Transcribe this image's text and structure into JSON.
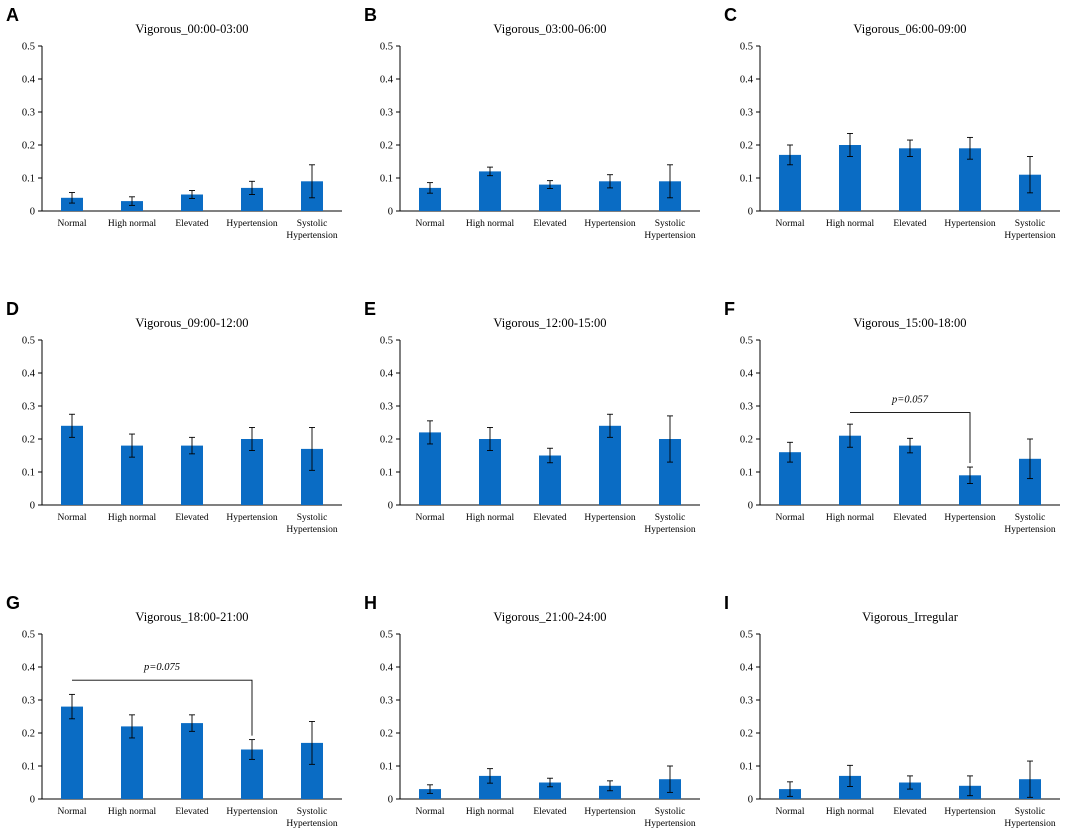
{
  "chart_data": [
    {
      "panel": "A",
      "type": "bar",
      "title": "Vigorous_00:00-03:00",
      "categories": [
        "Normal",
        "High normal",
        "Elevated",
        "Hypertension",
        "Systolic Hypertension"
      ],
      "values": [
        0.04,
        0.03,
        0.05,
        0.07,
        0.09
      ],
      "errors": [
        0.016,
        0.013,
        0.012,
        0.02,
        0.05
      ],
      "ylim": [
        0,
        0.5
      ],
      "yticks": [
        "0",
        "0.1",
        "0.2",
        "0.3",
        "0.4",
        "0.5"
      ],
      "xlabel": "",
      "ylabel": ""
    },
    {
      "panel": "B",
      "type": "bar",
      "title": "Vigorous_03:00-06:00",
      "categories": [
        "Normal",
        "High normal",
        "Elevated",
        "Hypertension",
        "Systolic Hypertension"
      ],
      "values": [
        0.07,
        0.12,
        0.08,
        0.09,
        0.09
      ],
      "errors": [
        0.016,
        0.013,
        0.012,
        0.02,
        0.05
      ],
      "ylim": [
        0,
        0.5
      ],
      "yticks": [
        "0",
        "0.1",
        "0.2",
        "0.3",
        "0.4",
        "0.5"
      ],
      "xlabel": "",
      "ylabel": ""
    },
    {
      "panel": "C",
      "type": "bar",
      "title": "Vigorous_06:00-09:00",
      "categories": [
        "Normal",
        "High normal",
        "Elevated",
        "Hypertension",
        "Systolic Hypertension"
      ],
      "values": [
        0.17,
        0.2,
        0.19,
        0.19,
        0.11
      ],
      "errors": [
        0.03,
        0.035,
        0.025,
        0.033,
        0.055
      ],
      "ylim": [
        0,
        0.5
      ],
      "yticks": [
        "0",
        "0.1",
        "0.2",
        "0.3",
        "0.4",
        "0.5"
      ],
      "xlabel": "",
      "ylabel": ""
    },
    {
      "panel": "D",
      "type": "bar",
      "title": "Vigorous_09:00-12:00",
      "categories": [
        "Normal",
        "High normal",
        "Elevated",
        "Hypertension",
        "Systolic Hypertension"
      ],
      "values": [
        0.24,
        0.18,
        0.18,
        0.2,
        0.17
      ],
      "errors": [
        0.035,
        0.035,
        0.025,
        0.035,
        0.065
      ],
      "ylim": [
        0,
        0.5
      ],
      "yticks": [
        "0",
        "0.1",
        "0.2",
        "0.3",
        "0.4",
        "0.5"
      ],
      "xlabel": "",
      "ylabel": ""
    },
    {
      "panel": "E",
      "type": "bar",
      "title": "Vigorous_12:00-15:00",
      "categories": [
        "Normal",
        "High normal",
        "Elevated",
        "Hypertension",
        "Systolic Hypertension"
      ],
      "values": [
        0.22,
        0.2,
        0.15,
        0.24,
        0.2
      ],
      "errors": [
        0.035,
        0.035,
        0.022,
        0.035,
        0.07
      ],
      "ylim": [
        0,
        0.5
      ],
      "yticks": [
        "0",
        "0.1",
        "0.2",
        "0.3",
        "0.4",
        "0.5"
      ],
      "xlabel": "",
      "ylabel": ""
    },
    {
      "panel": "F",
      "type": "bar",
      "title": "Vigorous_15:00-18:00",
      "categories": [
        "Normal",
        "High normal",
        "Elevated",
        "Hypertension",
        "Systolic Hypertension"
      ],
      "values": [
        0.16,
        0.21,
        0.18,
        0.09,
        0.14
      ],
      "errors": [
        0.03,
        0.035,
        0.022,
        0.025,
        0.06
      ],
      "ylim": [
        0,
        0.5
      ],
      "yticks": [
        "0",
        "0.1",
        "0.2",
        "0.3",
        "0.4",
        "0.5"
      ],
      "xlabel": "",
      "ylabel": "",
      "annotation": {
        "label": "p=0.057",
        "from": 1,
        "to": 3,
        "y": 0.28
      }
    },
    {
      "panel": "G",
      "type": "bar",
      "title": "Vigorous_18:00-21:00",
      "categories": [
        "Normal",
        "High normal",
        "Elevated",
        "Hypertension",
        "Systolic Hypertension"
      ],
      "values": [
        0.28,
        0.22,
        0.23,
        0.15,
        0.17
      ],
      "errors": [
        0.037,
        0.035,
        0.025,
        0.03,
        0.065
      ],
      "ylim": [
        0,
        0.5
      ],
      "yticks": [
        "0",
        "0.1",
        "0.2",
        "0.3",
        "0.4",
        "0.5"
      ],
      "xlabel": "",
      "ylabel": "",
      "annotation": {
        "label": "p=0.075",
        "from": 0,
        "to": 3,
        "y": 0.36
      }
    },
    {
      "panel": "H",
      "type": "bar",
      "title": "Vigorous_21:00-24:00",
      "categories": [
        "Normal",
        "High normal",
        "Elevated",
        "Hypertension",
        "Systolic Hypertension"
      ],
      "values": [
        0.03,
        0.07,
        0.05,
        0.04,
        0.06
      ],
      "errors": [
        0.013,
        0.022,
        0.013,
        0.015,
        0.04
      ],
      "ylim": [
        0,
        0.5
      ],
      "yticks": [
        "0",
        "0.1",
        "0.2",
        "0.3",
        "0.4",
        "0.5"
      ],
      "xlabel": "",
      "ylabel": ""
    },
    {
      "panel": "I",
      "type": "bar",
      "title": "Vigorous_Irregular",
      "categories": [
        "Normal",
        "High normal",
        "Elevated",
        "Hypertension",
        "Systolic Hypertension"
      ],
      "values": [
        0.03,
        0.07,
        0.05,
        0.04,
        0.06
      ],
      "errors": [
        0.022,
        0.032,
        0.02,
        0.03,
        0.055
      ],
      "ylim": [
        0,
        0.5
      ],
      "yticks": [
        "0",
        "0.1",
        "0.2",
        "0.3",
        "0.4",
        "0.5"
      ],
      "xlabel": "",
      "ylabel": ""
    }
  ]
}
